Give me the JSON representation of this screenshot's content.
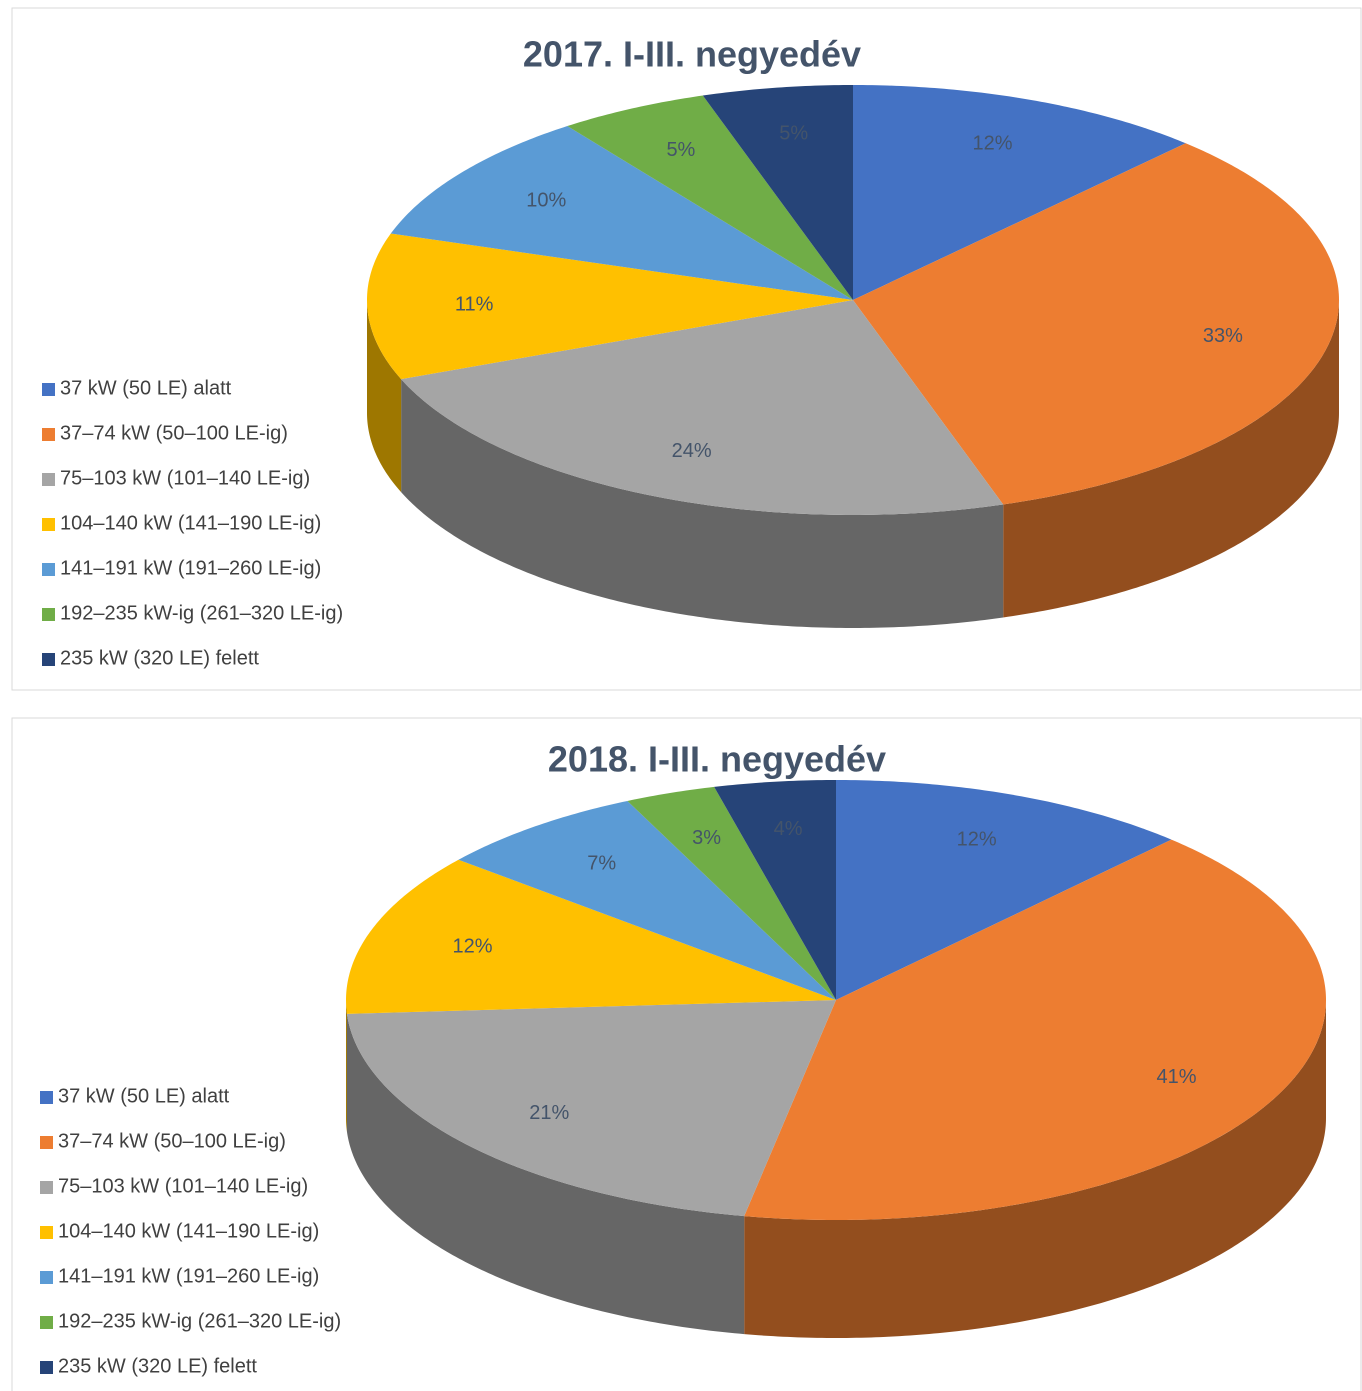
{
  "chart_data": [
    {
      "type": "pie",
      "title": "2017. I-III. negyedév",
      "categories": [
        "37 kW (50 LE) alatt",
        "37–74 kW (50–100 LE-ig)",
        "75–103 kW (101–140 LE-ig)",
        "104–140 kW (141–190 LE-ig)",
        "141–191 kW (191–260 LE-ig)",
        "192–235 kW-ig (261–320 LE-ig)",
        "235 kW (320 LE) felett"
      ],
      "values": [
        12,
        33,
        24,
        11,
        10,
        5,
        5
      ],
      "value_labels": [
        "12%",
        "33%",
        "24%",
        "11%",
        "10%",
        "5%",
        "5%"
      ],
      "colors": [
        "#4472c4",
        "#ed7d31",
        "#a5a5a5",
        "#ffc000",
        "#5b9bd5",
        "#70ad47",
        "#264478"
      ]
    },
    {
      "type": "pie",
      "title": "2018. I-III. negyedév",
      "categories": [
        "37 kW (50 LE) alatt",
        "37–74 kW (50–100 LE-ig)",
        "75–103 kW (101–140 LE-ig)",
        "104–140 kW (141–190 LE-ig)",
        "141–191 kW (191–260 LE-ig)",
        "192–235 kW-ig (261–320 LE-ig)",
        "235 kW (320 LE) felett"
      ],
      "values": [
        12,
        41,
        21,
        12,
        7,
        3,
        4
      ],
      "value_labels": [
        "12%",
        "41%",
        "21%",
        "12%",
        "7%",
        "3%",
        "4%"
      ],
      "colors": [
        "#4472c4",
        "#ed7d31",
        "#a5a5a5",
        "#ffc000",
        "#5b9bd5",
        "#70ad47",
        "#264478"
      ]
    }
  ]
}
